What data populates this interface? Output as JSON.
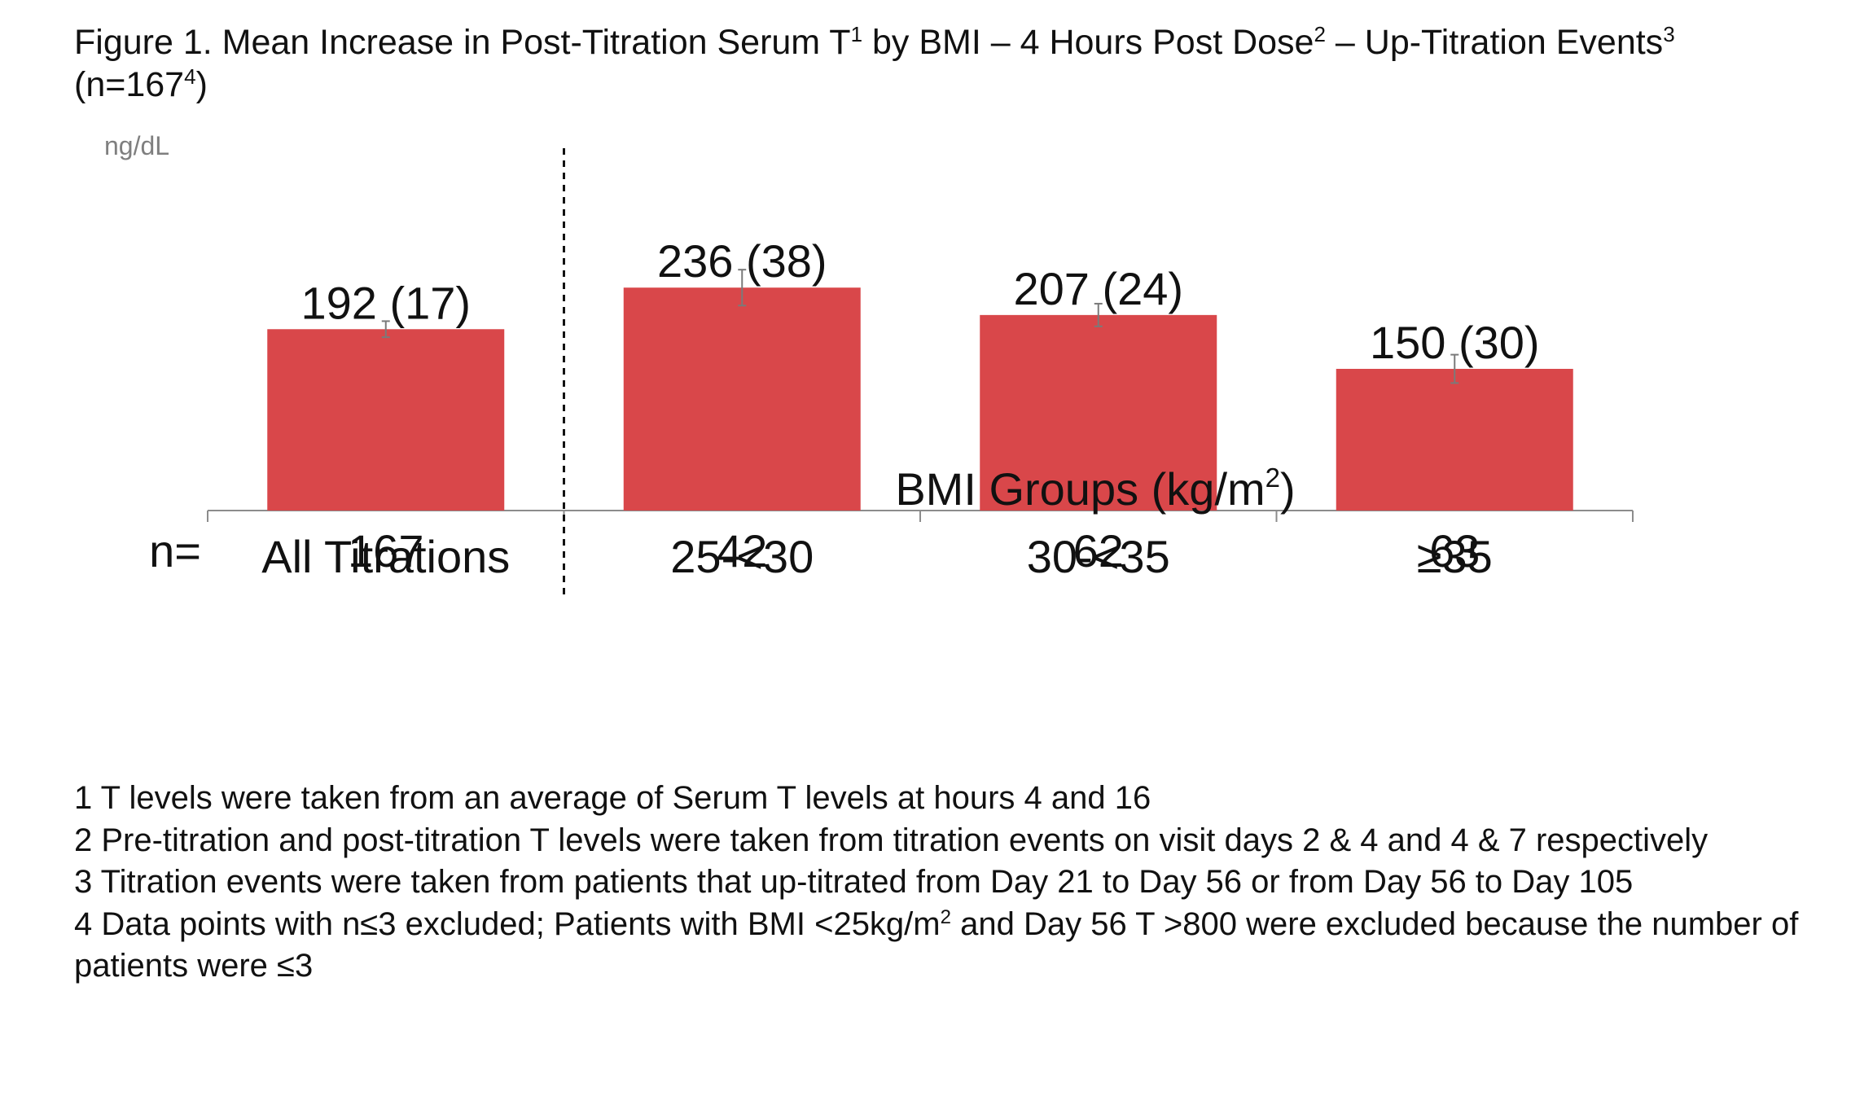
{
  "figure": {
    "title": {
      "part1": "Figure 1. Mean Increase in Post-Titration Serum T",
      "sup1": "1",
      "part2": " by BMI – 4 Hours Post Dose",
      "sup2": "2",
      "part3": " – Up-Titration Events",
      "sup3": "3",
      "part4": " (n=167",
      "sup4": "4",
      "part5": ")"
    }
  },
  "chart_data": {
    "type": "bar",
    "unit_label": "ng/dL",
    "categories": [
      "All Titrations",
      "25-<30",
      "30-<35",
      "≥35"
    ],
    "values": [
      192,
      236,
      207,
      150
    ],
    "errors": [
      17,
      38,
      24,
      30
    ],
    "value_labels": [
      "192 (17)",
      "236 (38)",
      "207 (24)",
      "150 (30)"
    ],
    "xlabel": "BMI Groups (kg/m",
    "xlabel_sup": "2",
    "xlabel_tail": ")",
    "n_label": "n=",
    "n_values": [
      "167",
      "42",
      "62",
      "63"
    ],
    "ylim": [
      0,
      420
    ],
    "bar_color": "#d9474a",
    "separator_after": "All Titrations"
  },
  "footnotes": {
    "n1": "1 T levels were taken from an average of Serum T levels at hours 4 and 16",
    "n2": "2 Pre-titration and post-titration T levels were taken from titration events on visit days 2 & 4 and 4 & 7 respectively",
    "n3": "3 Titration events were taken from patients that up-titrated from Day 21 to Day 56 or from Day 56 to Day 105",
    "n4a": "4 Data points with n≤3 excluded; Patients with BMI <25kg/m",
    "n4sup": "2",
    "n4b": " and Day 56 T >800 were excluded because the number of patients were ≤3"
  }
}
